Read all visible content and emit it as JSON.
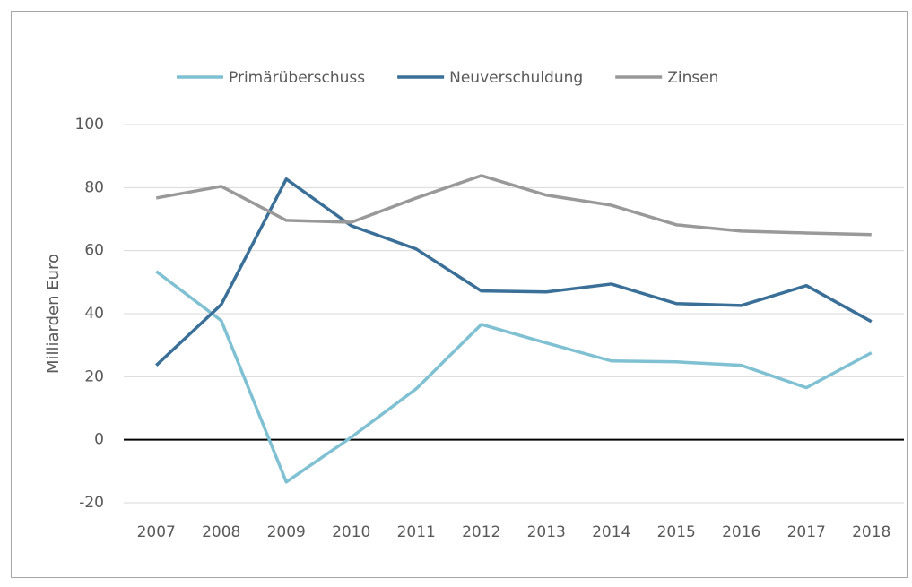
{
  "chart_data": {
    "type": "line",
    "y_label": "Milliarden Euro",
    "categories": [
      "2007",
      "2008",
      "2009",
      "2010",
      "2011",
      "2012",
      "2013",
      "2014",
      "2015",
      "2016",
      "2017",
      "2018"
    ],
    "series": [
      {
        "name": "Primärüberschuss",
        "color": "#7fc1d3",
        "values": [
          53.4,
          37.8,
          -13.4,
          0.8,
          16.2,
          36.6,
          30.7,
          25.0,
          24.7,
          23.6,
          16.5,
          27.6
        ]
      },
      {
        "name": "Neuverschuldung",
        "color": "#3a6f98",
        "values": [
          23.6,
          42.9,
          82.7,
          67.9,
          60.5,
          47.2,
          46.9,
          49.4,
          43.2,
          42.6,
          48.9,
          37.5
        ]
      },
      {
        "name": "Zinsen",
        "color": "#999999",
        "values": [
          76.7,
          80.4,
          69.6,
          69.0,
          76.7,
          83.8,
          77.6,
          74.4,
          68.2,
          66.2,
          65.6,
          65.1
        ]
      }
    ],
    "ylim": [
      -20,
      100
    ],
    "yticks": [
      -20,
      0,
      20,
      40,
      60,
      80,
      100
    ],
    "grid": true,
    "legend": "top"
  }
}
